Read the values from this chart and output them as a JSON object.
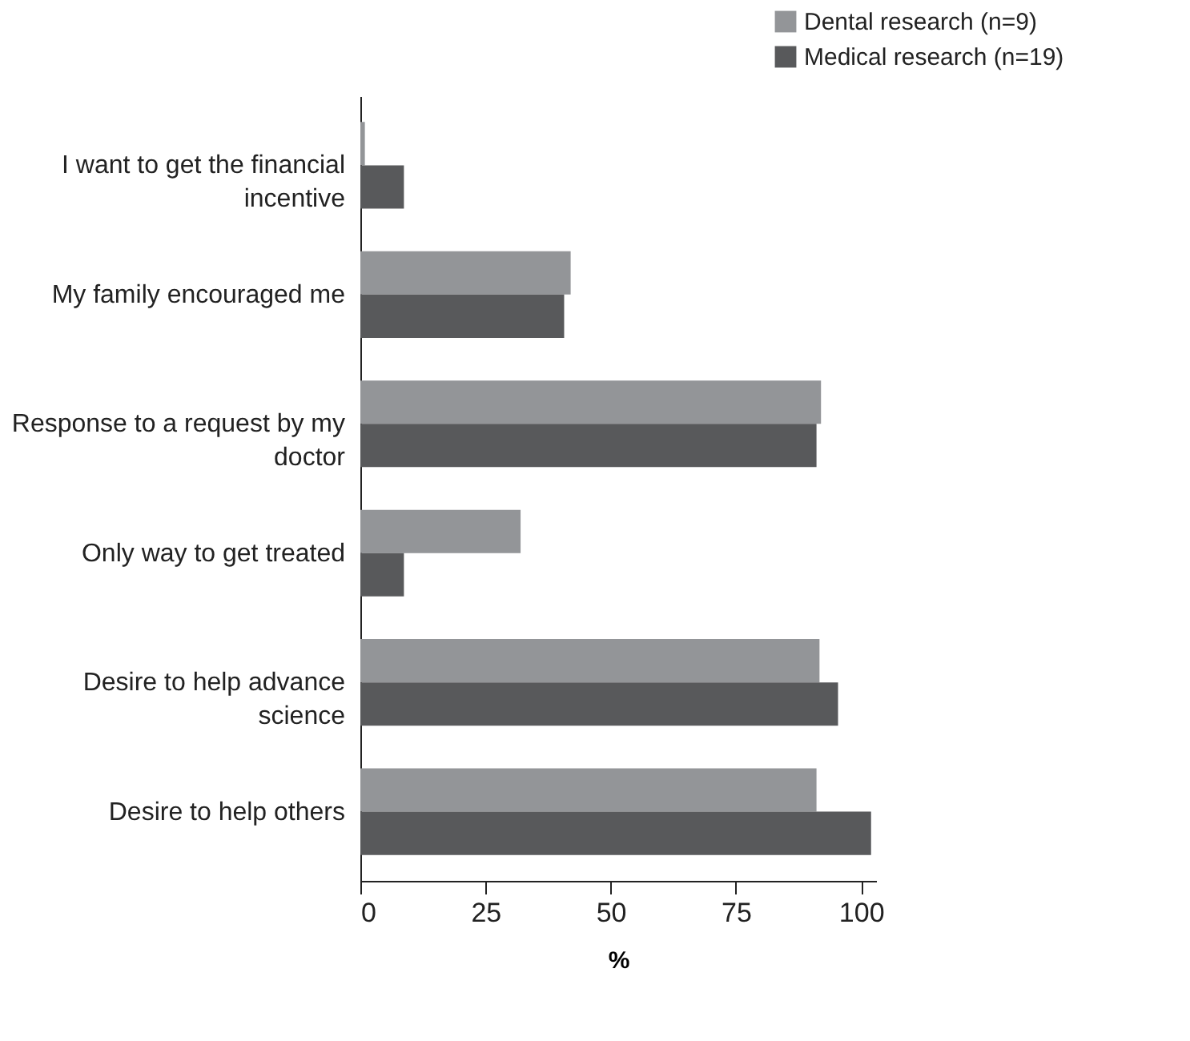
{
  "chart_data": {
    "type": "bar",
    "orientation": "horizontal",
    "xlabel": "%",
    "categories": [
      "I want to get the financial incentive",
      "My family encouraged me",
      "Response to a request by my doctor",
      "Only way to get treated",
      "Desire to help advance science",
      "Desire to help others"
    ],
    "series": [
      {
        "name": "Dental research (n=9)",
        "color": "#939598",
        "values": [
          0.9,
          42,
          92,
          32,
          91.7,
          91.1
        ]
      },
      {
        "name": "Medical research (n=19)",
        "color": "#58595b",
        "values": [
          8.7,
          40.7,
          91.1,
          8.7,
          95.4,
          102
        ]
      }
    ],
    "xlim": [
      0,
      103
    ],
    "xticks": [
      0,
      25,
      50,
      75,
      100
    ],
    "grid": false,
    "legend": "top right"
  }
}
